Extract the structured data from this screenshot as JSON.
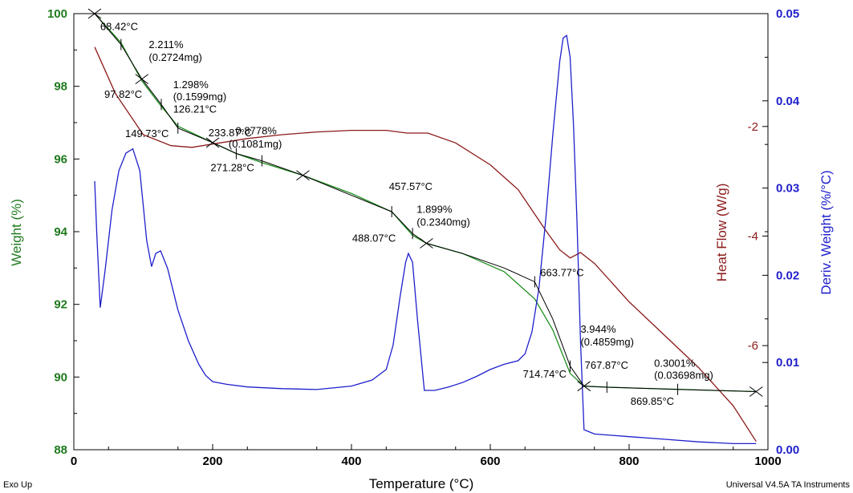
{
  "chart_data": {
    "type": "line",
    "xlabel": "Temperature (°C)",
    "xlim": [
      0,
      1000
    ],
    "x_ticks": [
      "0",
      "200",
      "400",
      "600",
      "800",
      "1000"
    ],
    "axes": {
      "weight": {
        "label": "Weight (%)",
        "ylim": [
          88,
          100
        ],
        "ticks": [
          "88",
          "90",
          "92",
          "94",
          "96",
          "98",
          "100"
        ],
        "color": "#1f7a1f"
      },
      "heat_flow": {
        "label": "Heat Flow (W/g)",
        "ylim": [
          -7.9,
          0.06
        ],
        "ticks": [
          "-2",
          "-4",
          "-6"
        ],
        "color": "#8b1a1a"
      },
      "deriv": {
        "label": "Deriv. Weight (%/°C)",
        "ylim": [
          0.0,
          0.05
        ],
        "ticks": [
          "0.00",
          "0.01",
          "0.02",
          "0.03",
          "0.04",
          "0.05"
        ],
        "color": "#1f1fcc"
      }
    },
    "series": [
      {
        "key": "weight",
        "axis": "weight",
        "color": "#1f8f1f",
        "x": [
          30,
          68,
          98,
          126,
          150,
          200,
          234,
          271,
          330,
          400,
          458,
          488,
          508,
          560,
          620,
          664,
          690,
          715,
          735,
          768,
          800,
          870,
          983
        ],
        "y": [
          100.0,
          99.2,
          98.15,
          97.45,
          96.9,
          96.45,
          96.15,
          95.9,
          95.55,
          95.05,
          94.55,
          93.9,
          93.68,
          93.4,
          92.9,
          92.15,
          91.3,
          90.1,
          89.75,
          89.72,
          89.7,
          89.66,
          89.6
        ]
      },
      {
        "key": "heat_flow",
        "axis": "heat_flow",
        "color": "#8b1a1a",
        "x": [
          30,
          60,
          100,
          140,
          170,
          200,
          250,
          300,
          350,
          400,
          450,
          480,
          510,
          550,
          600,
          640,
          680,
          700,
          715,
          730,
          750,
          800,
          850,
          900,
          950,
          983
        ],
        "y": [
          -0.55,
          -1.4,
          -2.15,
          -2.35,
          -2.38,
          -2.32,
          -2.22,
          -2.15,
          -2.1,
          -2.07,
          -2.07,
          -2.12,
          -2.12,
          -2.3,
          -2.7,
          -3.15,
          -3.9,
          -4.25,
          -4.4,
          -4.3,
          -4.5,
          -5.2,
          -5.8,
          -6.4,
          -7.1,
          -7.75
        ]
      },
      {
        "key": "deriv",
        "axis": "deriv",
        "color": "#1f1fcc",
        "x": [
          30,
          33,
          38,
          45,
          55,
          65,
          75,
          85,
          95,
          105,
          112,
          118,
          125,
          135,
          150,
          165,
          180,
          190,
          200,
          220,
          250,
          300,
          350,
          400,
          430,
          450,
          460,
          470,
          478,
          482,
          488,
          495,
          505,
          520,
          540,
          560,
          580,
          600,
          620,
          640,
          650,
          660,
          670,
          680,
          690,
          700,
          705,
          710,
          715,
          720,
          725,
          730,
          735,
          750,
          800,
          850,
          900,
          950,
          983
        ],
        "y": [
          0.0308,
          0.025,
          0.0163,
          0.0205,
          0.0275,
          0.032,
          0.034,
          0.0345,
          0.032,
          0.024,
          0.021,
          0.0225,
          0.0228,
          0.0208,
          0.016,
          0.0125,
          0.0098,
          0.0085,
          0.0078,
          0.0075,
          0.0072,
          0.007,
          0.0069,
          0.0073,
          0.008,
          0.0092,
          0.012,
          0.0175,
          0.0215,
          0.0225,
          0.0215,
          0.015,
          0.0068,
          0.0068,
          0.0072,
          0.0077,
          0.0084,
          0.0092,
          0.0098,
          0.0102,
          0.011,
          0.0135,
          0.0185,
          0.0265,
          0.036,
          0.0445,
          0.0472,
          0.0475,
          0.045,
          0.037,
          0.026,
          0.0125,
          0.0023,
          0.0018,
          0.0015,
          0.0012,
          0.0009,
          0.0007,
          0.0007
        ]
      }
    ],
    "steps": [
      {
        "axis": "weight",
        "x": [
          30,
          68,
          98,
          126,
          150,
          200,
          234,
          271,
          330,
          400,
          458,
          488,
          508,
          560,
          620,
          664,
          690,
          715,
          735,
          768,
          800,
          870,
          983
        ],
        "y": [
          100.0,
          99.15,
          98.2,
          97.5,
          96.85,
          96.45,
          96.15,
          95.95,
          95.55,
          95.0,
          94.55,
          93.95,
          93.68,
          93.4,
          93.0,
          92.62,
          91.6,
          90.3,
          89.75,
          89.72,
          89.7,
          89.66,
          89.6
        ]
      }
    ],
    "markers": [
      {
        "x": 30,
        "y": 100.0,
        "kind": "arrow"
      },
      {
        "x": 68,
        "y": 99.15,
        "kind": "tick"
      },
      {
        "x": 98,
        "y": 98.2,
        "kind": "arrow"
      },
      {
        "x": 126,
        "y": 97.5,
        "kind": "tick"
      },
      {
        "x": 150,
        "y": 96.85,
        "kind": "tick"
      },
      {
        "x": 200,
        "y": 96.45,
        "kind": "arrow"
      },
      {
        "x": 234,
        "y": 96.15,
        "kind": "tick"
      },
      {
        "x": 271,
        "y": 95.95,
        "kind": "tick"
      },
      {
        "x": 330,
        "y": 95.55,
        "kind": "arrow"
      },
      {
        "x": 458,
        "y": 94.55,
        "kind": "tick"
      },
      {
        "x": 488,
        "y": 93.95,
        "kind": "tick"
      },
      {
        "x": 508,
        "y": 93.68,
        "kind": "arrow"
      },
      {
        "x": 664,
        "y": 92.62,
        "kind": "tick"
      },
      {
        "x": 715,
        "y": 90.3,
        "kind": "tick"
      },
      {
        "x": 735,
        "y": 89.75,
        "kind": "arrow"
      },
      {
        "x": 768,
        "y": 89.72,
        "kind": "tick"
      },
      {
        "x": 870,
        "y": 89.66,
        "kind": "tick"
      },
      {
        "x": 983,
        "y": 89.6,
        "kind": "arrow"
      }
    ],
    "annotations": [
      {
        "text": "68.42°C",
        "x": 38,
        "y": 99.55
      },
      {
        "text": "2.211%",
        "x": 108,
        "y": 99.05
      },
      {
        "text": "(0.2724mg)",
        "x": 108,
        "y": 98.7
      },
      {
        "text": "1.298%",
        "x": 143,
        "y": 97.95
      },
      {
        "text": "(0.1599mg)",
        "x": 143,
        "y": 97.62
      },
      {
        "text": "97.82°C",
        "x": 44,
        "y": 97.68
      },
      {
        "text": "126.21°C",
        "x": 143,
        "y": 97.28
      },
      {
        "text": "149.73°C",
        "x": 74,
        "y": 96.6
      },
      {
        "text": "233.87°C",
        "x": 194,
        "y": 96.62
      },
      {
        "text": "0.8778%",
        "x": 233,
        "y": 96.68
      },
      {
        "text": "(0.1081mg)",
        "x": 223,
        "y": 96.32
      },
      {
        "text": "271.28°C",
        "x": 197,
        "y": 95.67
      },
      {
        "text": "457.57°C",
        "x": 454,
        "y": 95.15
      },
      {
        "text": "1.899%",
        "x": 494,
        "y": 94.52
      },
      {
        "text": "(0.2340mg)",
        "x": 494,
        "y": 94.17
      },
      {
        "text": "488.07°C",
        "x": 401,
        "y": 93.72
      },
      {
        "text": "663.77°C",
        "x": 672,
        "y": 92.78
      },
      {
        "text": "3.944%",
        "x": 730,
        "y": 91.22
      },
      {
        "text": "(0.4859mg)",
        "x": 730,
        "y": 90.87
      },
      {
        "text": "767.87°C",
        "x": 736,
        "y": 90.23
      },
      {
        "text": "714.74°C",
        "x": 647,
        "y": 89.98
      },
      {
        "text": "0.3001%",
        "x": 836,
        "y": 90.28
      },
      {
        "text": "(0.03698mg)",
        "x": 836,
        "y": 89.95
      },
      {
        "text": "869.85°C",
        "x": 802,
        "y": 89.23
      }
    ]
  },
  "footer": {
    "left": "Exo Up",
    "right": "Universal V4.5A TA Instruments"
  }
}
